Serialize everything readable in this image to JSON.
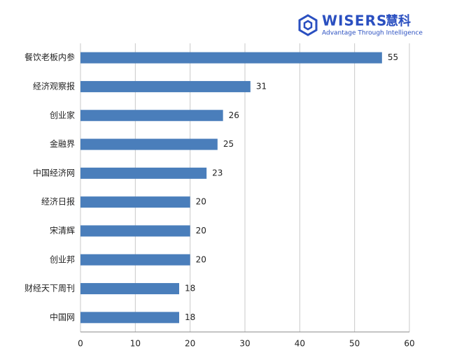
{
  "chart_data": {
    "type": "hbar",
    "logo": {
      "name": "WISERS",
      "name_cn": "慧科",
      "tagline": "Advantage Through Intelligence"
    },
    "categories": [
      "餐饮老板内参",
      "经济观察报",
      "创业家",
      "金融界",
      "中国经济网",
      "经济日报",
      "宋清辉",
      "创业邦",
      "财经天下周刊",
      "中国网"
    ],
    "values": [
      55,
      31,
      26,
      25,
      23,
      20,
      20,
      20,
      18,
      18
    ],
    "color": "#4a7ebb",
    "xlim": [
      0,
      60
    ],
    "xticks": [
      0,
      10,
      20,
      30,
      40,
      50,
      60
    ],
    "grid": true
  }
}
